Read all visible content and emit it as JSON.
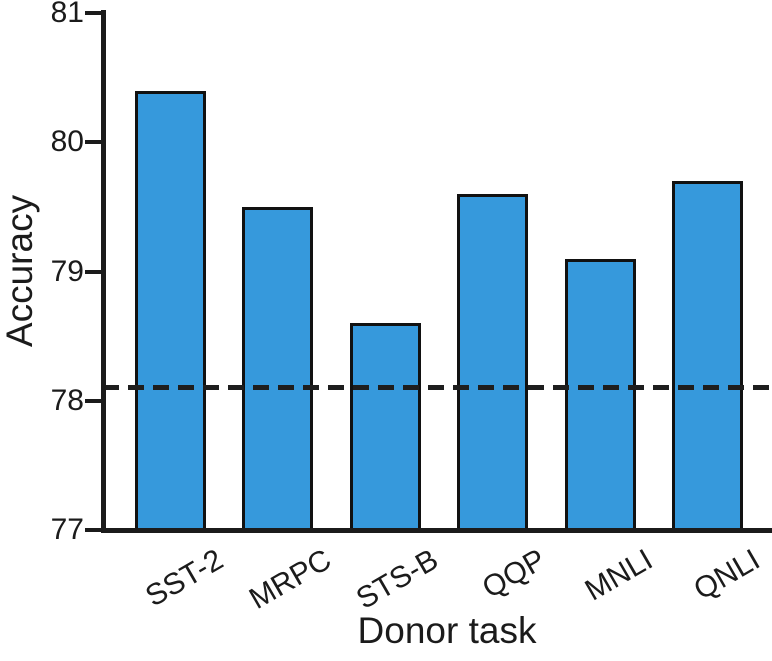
{
  "figure": {
    "background_color": "#ffffff",
    "text_color": "#1b1b1b",
    "axis_color": "#1b1b1b"
  },
  "chart_data": {
    "type": "bar",
    "title": "",
    "categories": [
      "SST-2",
      "MRPC",
      "STS-B",
      "QQP",
      "MNLI",
      "QNLI"
    ],
    "values": [
      80.4,
      79.5,
      78.6,
      79.6,
      79.1,
      79.7
    ],
    "baseline_value": 78.1,
    "baseline_style": "dashed",
    "xlabel": "Donor task",
    "ylabel": "Accuracy",
    "ylim": [
      77,
      81
    ],
    "yticks": [
      "77",
      "78",
      "79",
      "80",
      "81"
    ],
    "grid": false,
    "legend": "none",
    "bar_fill_color": "#3699dc",
    "bar_edge_color": "#111111",
    "baseline_color": "#1e1e1e",
    "xtick_rotation_deg": 30
  }
}
